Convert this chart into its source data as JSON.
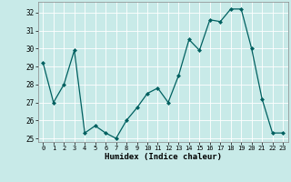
{
  "x": [
    0,
    1,
    2,
    3,
    4,
    5,
    6,
    7,
    8,
    9,
    10,
    11,
    12,
    13,
    14,
    15,
    16,
    17,
    18,
    19,
    20,
    21,
    22,
    23
  ],
  "y": [
    29.2,
    27.0,
    28.0,
    29.9,
    25.3,
    25.7,
    25.3,
    25.0,
    26.0,
    26.7,
    27.5,
    27.8,
    27.0,
    28.5,
    30.5,
    29.9,
    31.6,
    31.5,
    32.2,
    32.2,
    30.0,
    27.2,
    25.3,
    25.3
  ],
  "line_color": "#006060",
  "marker": "D",
  "marker_size": 2,
  "xlabel": "Humidex (Indice chaleur)",
  "ylim": [
    24.8,
    32.6
  ],
  "xlim": [
    -0.5,
    23.5
  ],
  "yticks": [
    25,
    26,
    27,
    28,
    29,
    30,
    31,
    32
  ],
  "xticks": [
    0,
    1,
    2,
    3,
    4,
    5,
    6,
    7,
    8,
    9,
    10,
    11,
    12,
    13,
    14,
    15,
    16,
    17,
    18,
    19,
    20,
    21,
    22,
    23
  ],
  "bg_color": "#c8eae8",
  "grid_color": "#ffffff"
}
